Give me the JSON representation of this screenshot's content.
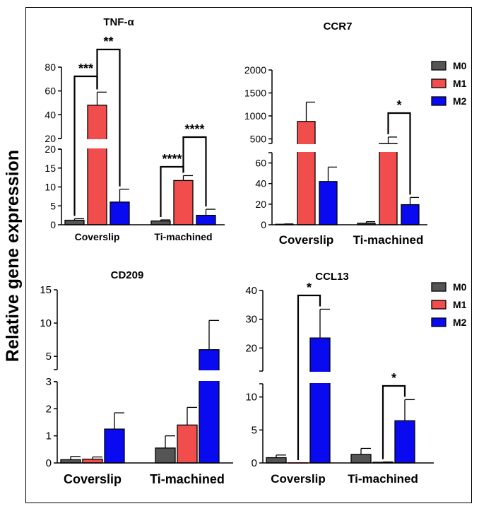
{
  "figure": {
    "y_axis_label": "Relative gene expression",
    "colors": {
      "M0": "#555555",
      "M1": "#f14d4d",
      "M2": "#0a0af0",
      "axis": "#000000"
    }
  },
  "chart_data": [
    {
      "type": "bar",
      "title": "TNF-α",
      "categories": [
        "Coverslip",
        "Ti-machined"
      ],
      "series": [
        {
          "name": "M0",
          "values": [
            1.2,
            1.0
          ],
          "errors": [
            0.4,
            0.3
          ]
        },
        {
          "name": "M1",
          "values": [
            48.0,
            11.7
          ],
          "errors": [
            11.0,
            1.3
          ]
        },
        {
          "name": "M2",
          "values": [
            6.0,
            2.5
          ],
          "errors": [
            3.4,
            1.6
          ]
        }
      ],
      "axis_segments": [
        {
          "range": [
            0,
            20
          ],
          "ticks": [
            0,
            5,
            10,
            15,
            20
          ]
        },
        {
          "range": [
            20,
            80
          ],
          "ticks": [
            20,
            40,
            60,
            80
          ]
        }
      ],
      "significance": [
        {
          "label": "***",
          "category": "Coverslip",
          "from": "M0",
          "to": "M1"
        },
        {
          "label": "**",
          "category": "Coverslip",
          "from": "M1",
          "to": "M2"
        },
        {
          "label": "****",
          "category": "Ti-machined",
          "from": "M0",
          "to": "M1"
        },
        {
          "label": "****",
          "category": "Ti-machined",
          "from": "M1",
          "to": "M2"
        }
      ],
      "legend": null
    },
    {
      "type": "bar",
      "title": "CCR7",
      "categories": [
        "Coverslip",
        "Ti-machined"
      ],
      "series": [
        {
          "name": "M0",
          "values": [
            0.5,
            1.5
          ],
          "errors": [
            0.3,
            1.5
          ]
        },
        {
          "name": "M1",
          "values": [
            880,
            380
          ],
          "errors": [
            420,
            160
          ]
        },
        {
          "name": "M2",
          "values": [
            42,
            19.5
          ],
          "errors": [
            14,
            7
          ]
        }
      ],
      "axis_segments": [
        {
          "range": [
            0,
            70
          ],
          "ticks": [
            0,
            20,
            40,
            60
          ]
        },
        {
          "range": [
            400,
            2000
          ],
          "ticks": [
            500,
            1000,
            1500,
            2000
          ]
        }
      ],
      "significance": [
        {
          "label": "*",
          "category": "Ti-machined",
          "from": "M1",
          "to": "M2"
        }
      ],
      "legend": [
        "M0",
        "M1",
        "M2"
      ]
    },
    {
      "type": "bar",
      "title": "CD209",
      "categories": [
        "Coverslip",
        "Ti-machined"
      ],
      "series": [
        {
          "name": "M0",
          "values": [
            0.12,
            0.55
          ],
          "errors": [
            0.12,
            0.45
          ]
        },
        {
          "name": "M1",
          "values": [
            0.14,
            1.4
          ],
          "errors": [
            0.08,
            0.65
          ]
        },
        {
          "name": "M2",
          "values": [
            1.25,
            6.0
          ],
          "errors": [
            0.6,
            4.4
          ]
        }
      ],
      "axis_segments": [
        {
          "range": [
            0,
            3
          ],
          "ticks": [
            0,
            1,
            2,
            3
          ]
        },
        {
          "range": [
            3,
            15
          ],
          "ticks": [
            5,
            10,
            15
          ]
        }
      ],
      "significance": [],
      "legend": null
    },
    {
      "type": "bar",
      "title": "CCL13",
      "categories": [
        "Coverslip",
        "Ti-machined"
      ],
      "series": [
        {
          "name": "M0",
          "values": [
            0.8,
            1.3
          ],
          "errors": [
            0.4,
            0.9
          ]
        },
        {
          "name": "M1",
          "values": [
            0.0,
            0.1
          ],
          "errors": [
            0.0,
            0.05
          ]
        },
        {
          "name": "M2",
          "values": [
            23.5,
            6.4
          ],
          "errors": [
            10.0,
            3.2
          ]
        }
      ],
      "axis_segments": [
        {
          "range": [
            0,
            12
          ],
          "ticks": [
            0,
            5,
            10
          ]
        },
        {
          "range": [
            12,
            40
          ],
          "ticks": [
            20,
            30,
            40
          ]
        }
      ],
      "significance": [
        {
          "label": "*",
          "category": "Coverslip",
          "from": "M1",
          "to": "M2"
        },
        {
          "label": "*",
          "category": "Ti-machined",
          "from": "M1",
          "to": "M2"
        }
      ],
      "legend": [
        "M0",
        "M1",
        "M2"
      ]
    }
  ]
}
